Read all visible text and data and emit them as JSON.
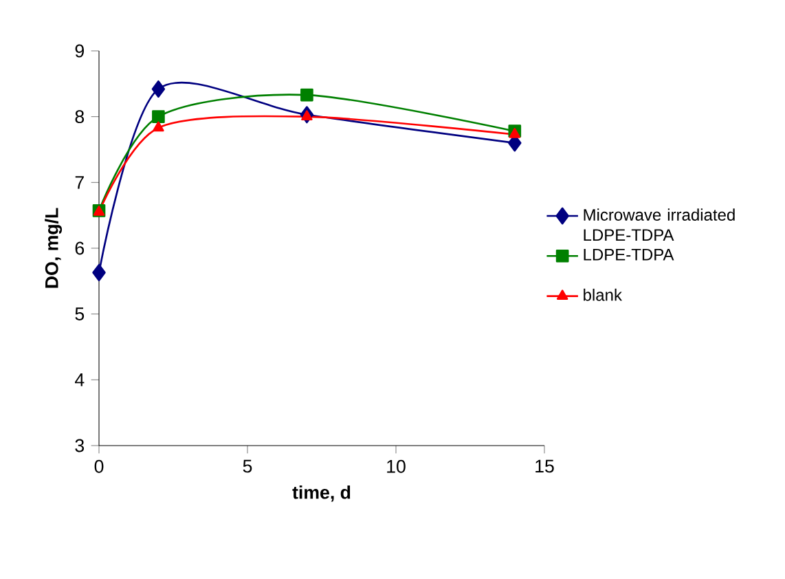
{
  "chart_data": {
    "type": "line",
    "xlabel": "time, d",
    "ylabel": "DO, mg/L",
    "x": [
      0,
      2,
      7,
      14
    ],
    "series": [
      {
        "name": "Microwave irradiated LDPE-TDPA",
        "color": "#000080",
        "marker": "diamond",
        "values": [
          5.63,
          8.42,
          8.03,
          7.6
        ]
      },
      {
        "name": "LDPE-TDPA",
        "color": "#008000",
        "marker": "square",
        "values": [
          6.57,
          8.0,
          8.33,
          7.78
        ]
      },
      {
        "name": "blank",
        "color": "#ff0000",
        "marker": "triangle",
        "values": [
          6.55,
          7.83,
          8.0,
          7.73
        ]
      }
    ],
    "xlim": [
      0,
      15
    ],
    "ylim": [
      3,
      9
    ],
    "xticks": [
      0,
      5,
      10,
      15
    ],
    "yticks": [
      3,
      4,
      5,
      6,
      7,
      8,
      9
    ],
    "grid": false,
    "legend": "right",
    "line_style": "solid"
  }
}
